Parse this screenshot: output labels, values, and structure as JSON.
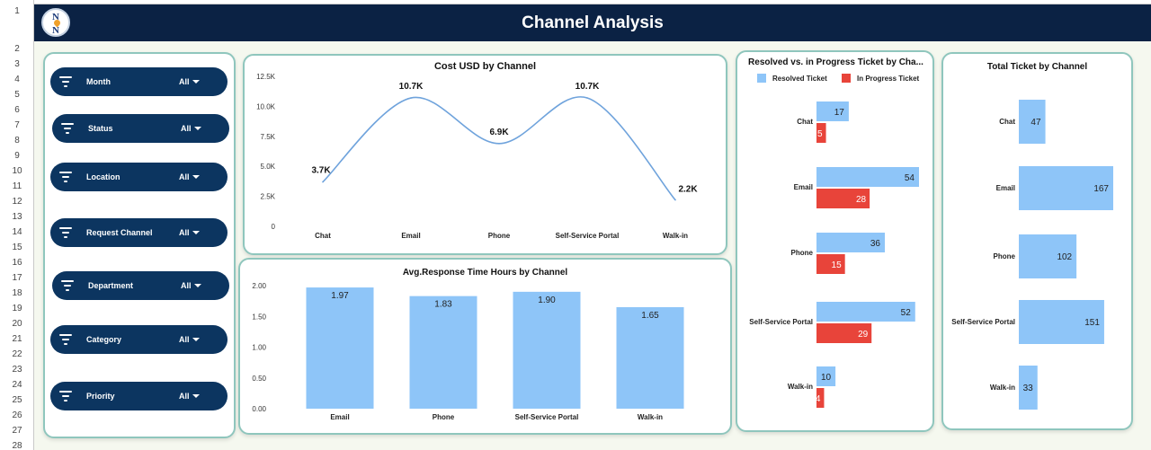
{
  "header": {
    "title": "Channel Analysis",
    "logo_text": [
      "N",
      "N"
    ]
  },
  "row_numbers": [
    "1",
    "2",
    "3",
    "4",
    "5",
    "6",
    "7",
    "8",
    "9",
    "10",
    "11",
    "12",
    "13",
    "14",
    "15",
    "16",
    "17",
    "18",
    "19",
    "20",
    "21",
    "22",
    "23",
    "24",
    "25",
    "26",
    "27",
    "28"
  ],
  "filters": [
    {
      "label": "Month",
      "value": "All"
    },
    {
      "label": "Status",
      "value": "All"
    },
    {
      "label": "Location",
      "value": "All"
    },
    {
      "label": "Request Channel",
      "value": "All"
    },
    {
      "label": "Department",
      "value": "All"
    },
    {
      "label": "Category",
      "value": "All"
    },
    {
      "label": "Priority",
      "value": "All"
    }
  ],
  "colors": {
    "banner": "#0b2244",
    "pill": "#0c3560",
    "blue": "#8ec5f8",
    "red": "#e8443a",
    "line": "#6fa3dc",
    "border": "#8fc6bd"
  },
  "chart_data": [
    {
      "type": "line",
      "title": "Cost USD by Channel",
      "categories": [
        "Chat",
        "Email",
        "Phone",
        "Self-Service Portal",
        "Walk-in"
      ],
      "values": [
        3700,
        10700,
        6900,
        10700,
        2200
      ],
      "data_labels": [
        "3.7K",
        "10.7K",
        "6.9K",
        "10.7K",
        "2.2K"
      ],
      "ylim": [
        0,
        12500
      ],
      "yticks": [
        0,
        2500,
        5000,
        7500,
        10000,
        12500
      ],
      "ytick_labels": [
        "0",
        "2.5K",
        "5.0K",
        "7.5K",
        "10.0K",
        "12.5K"
      ],
      "smooth": true
    },
    {
      "type": "bar",
      "title": "Avg.Response Time Hours by Channel",
      "categories": [
        "Email",
        "Phone",
        "Self-Service Portal",
        "Walk-in"
      ],
      "values": [
        1.97,
        1.83,
        1.9,
        1.65
      ],
      "data_labels": [
        "1.97",
        "1.83",
        "1.90",
        "1.65"
      ],
      "ylim": [
        0,
        2.0
      ],
      "yticks": [
        0,
        0.5,
        1.0,
        1.5,
        2.0
      ],
      "ytick_labels": [
        "0.00",
        "0.50",
        "1.00",
        "1.50",
        "2.00"
      ]
    },
    {
      "type": "bar",
      "orientation": "horizontal",
      "title": "Resolved vs. in Progress Ticket by Cha...",
      "legend": "top",
      "categories": [
        "Chat",
        "Email",
        "Phone",
        "Self-Service Portal",
        "Walk-in"
      ],
      "series": [
        {
          "name": "Resolved Ticket",
          "values": [
            17,
            54,
            36,
            52,
            10
          ],
          "color": "#8ec5f8"
        },
        {
          "name": "In Progress Ticket",
          "values": [
            5,
            28,
            15,
            29,
            4
          ],
          "color": "#e8443a"
        }
      ],
      "xlim": [
        0,
        60
      ]
    },
    {
      "type": "bar",
      "orientation": "horizontal",
      "title": "Total Ticket by Channel",
      "categories": [
        "Chat",
        "Email",
        "Phone",
        "Self-Service Portal",
        "Walk-in"
      ],
      "values": [
        47,
        167,
        102,
        151,
        33
      ],
      "xlim": [
        0,
        167
      ]
    }
  ]
}
